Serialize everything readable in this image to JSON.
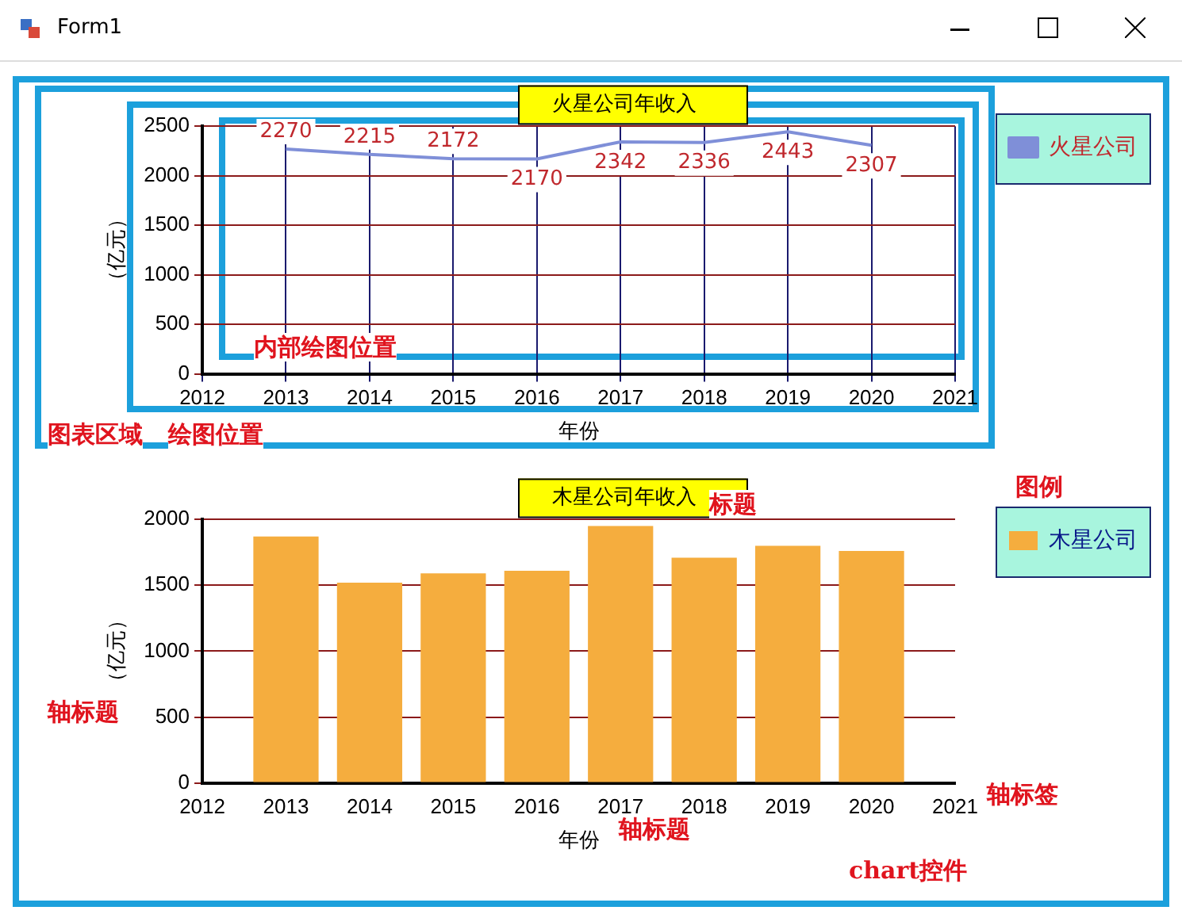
{
  "chart_data": [
    {
      "type": "line",
      "title": "火星公司年收入",
      "xlabel": "年份",
      "ylabel": "（亿元）",
      "x": [
        2013,
        2014,
        2015,
        2016,
        2017,
        2018,
        2019,
        2020
      ],
      "series": [
        {
          "name": "火星公司",
          "color": "#7f8fd8",
          "values": [
            2270,
            2215,
            2172,
            2170,
            2342,
            2336,
            2443,
            2307
          ]
        }
      ],
      "xlim": [
        2012,
        2021
      ],
      "xticks": [
        2012,
        2013,
        2014,
        2015,
        2016,
        2017,
        2018,
        2019,
        2020,
        2021
      ],
      "ylim": [
        0,
        2500
      ],
      "yticks": [
        0,
        500,
        1000,
        1500,
        2000,
        2500
      ],
      "grid": true,
      "legend": "top right",
      "data_labels": true,
      "marker": "none",
      "annotations": [
        "Form1",
        "内部绘图位置",
        "绘图位置",
        "图表区域"
      ]
    },
    {
      "type": "bar",
      "title": "木星公司年收入",
      "xlabel": "年份",
      "ylabel": "（亿元）",
      "x": [
        2013,
        2014,
        2015,
        2016,
        2017,
        2018,
        2019,
        2020
      ],
      "series": [
        {
          "name": "木星公司",
          "color": "#f5ad3e",
          "values": [
            1870,
            1520,
            1590,
            1610,
            1950,
            1710,
            1800,
            1760
          ]
        }
      ],
      "xlim": [
        2012,
        2021
      ],
      "xticks": [
        2012,
        2013,
        2014,
        2015,
        2016,
        2017,
        2018,
        2019,
        2020,
        2021
      ],
      "ylim": [
        0,
        2000
      ],
      "yticks": [
        0,
        500,
        1000,
        1500,
        2000
      ],
      "grid": "y",
      "legend": "top right",
      "annotations": [
        "标题",
        "图例",
        "轴标题",
        "轴标签",
        "轴标题",
        "chart控件"
      ]
    }
  ]
}
